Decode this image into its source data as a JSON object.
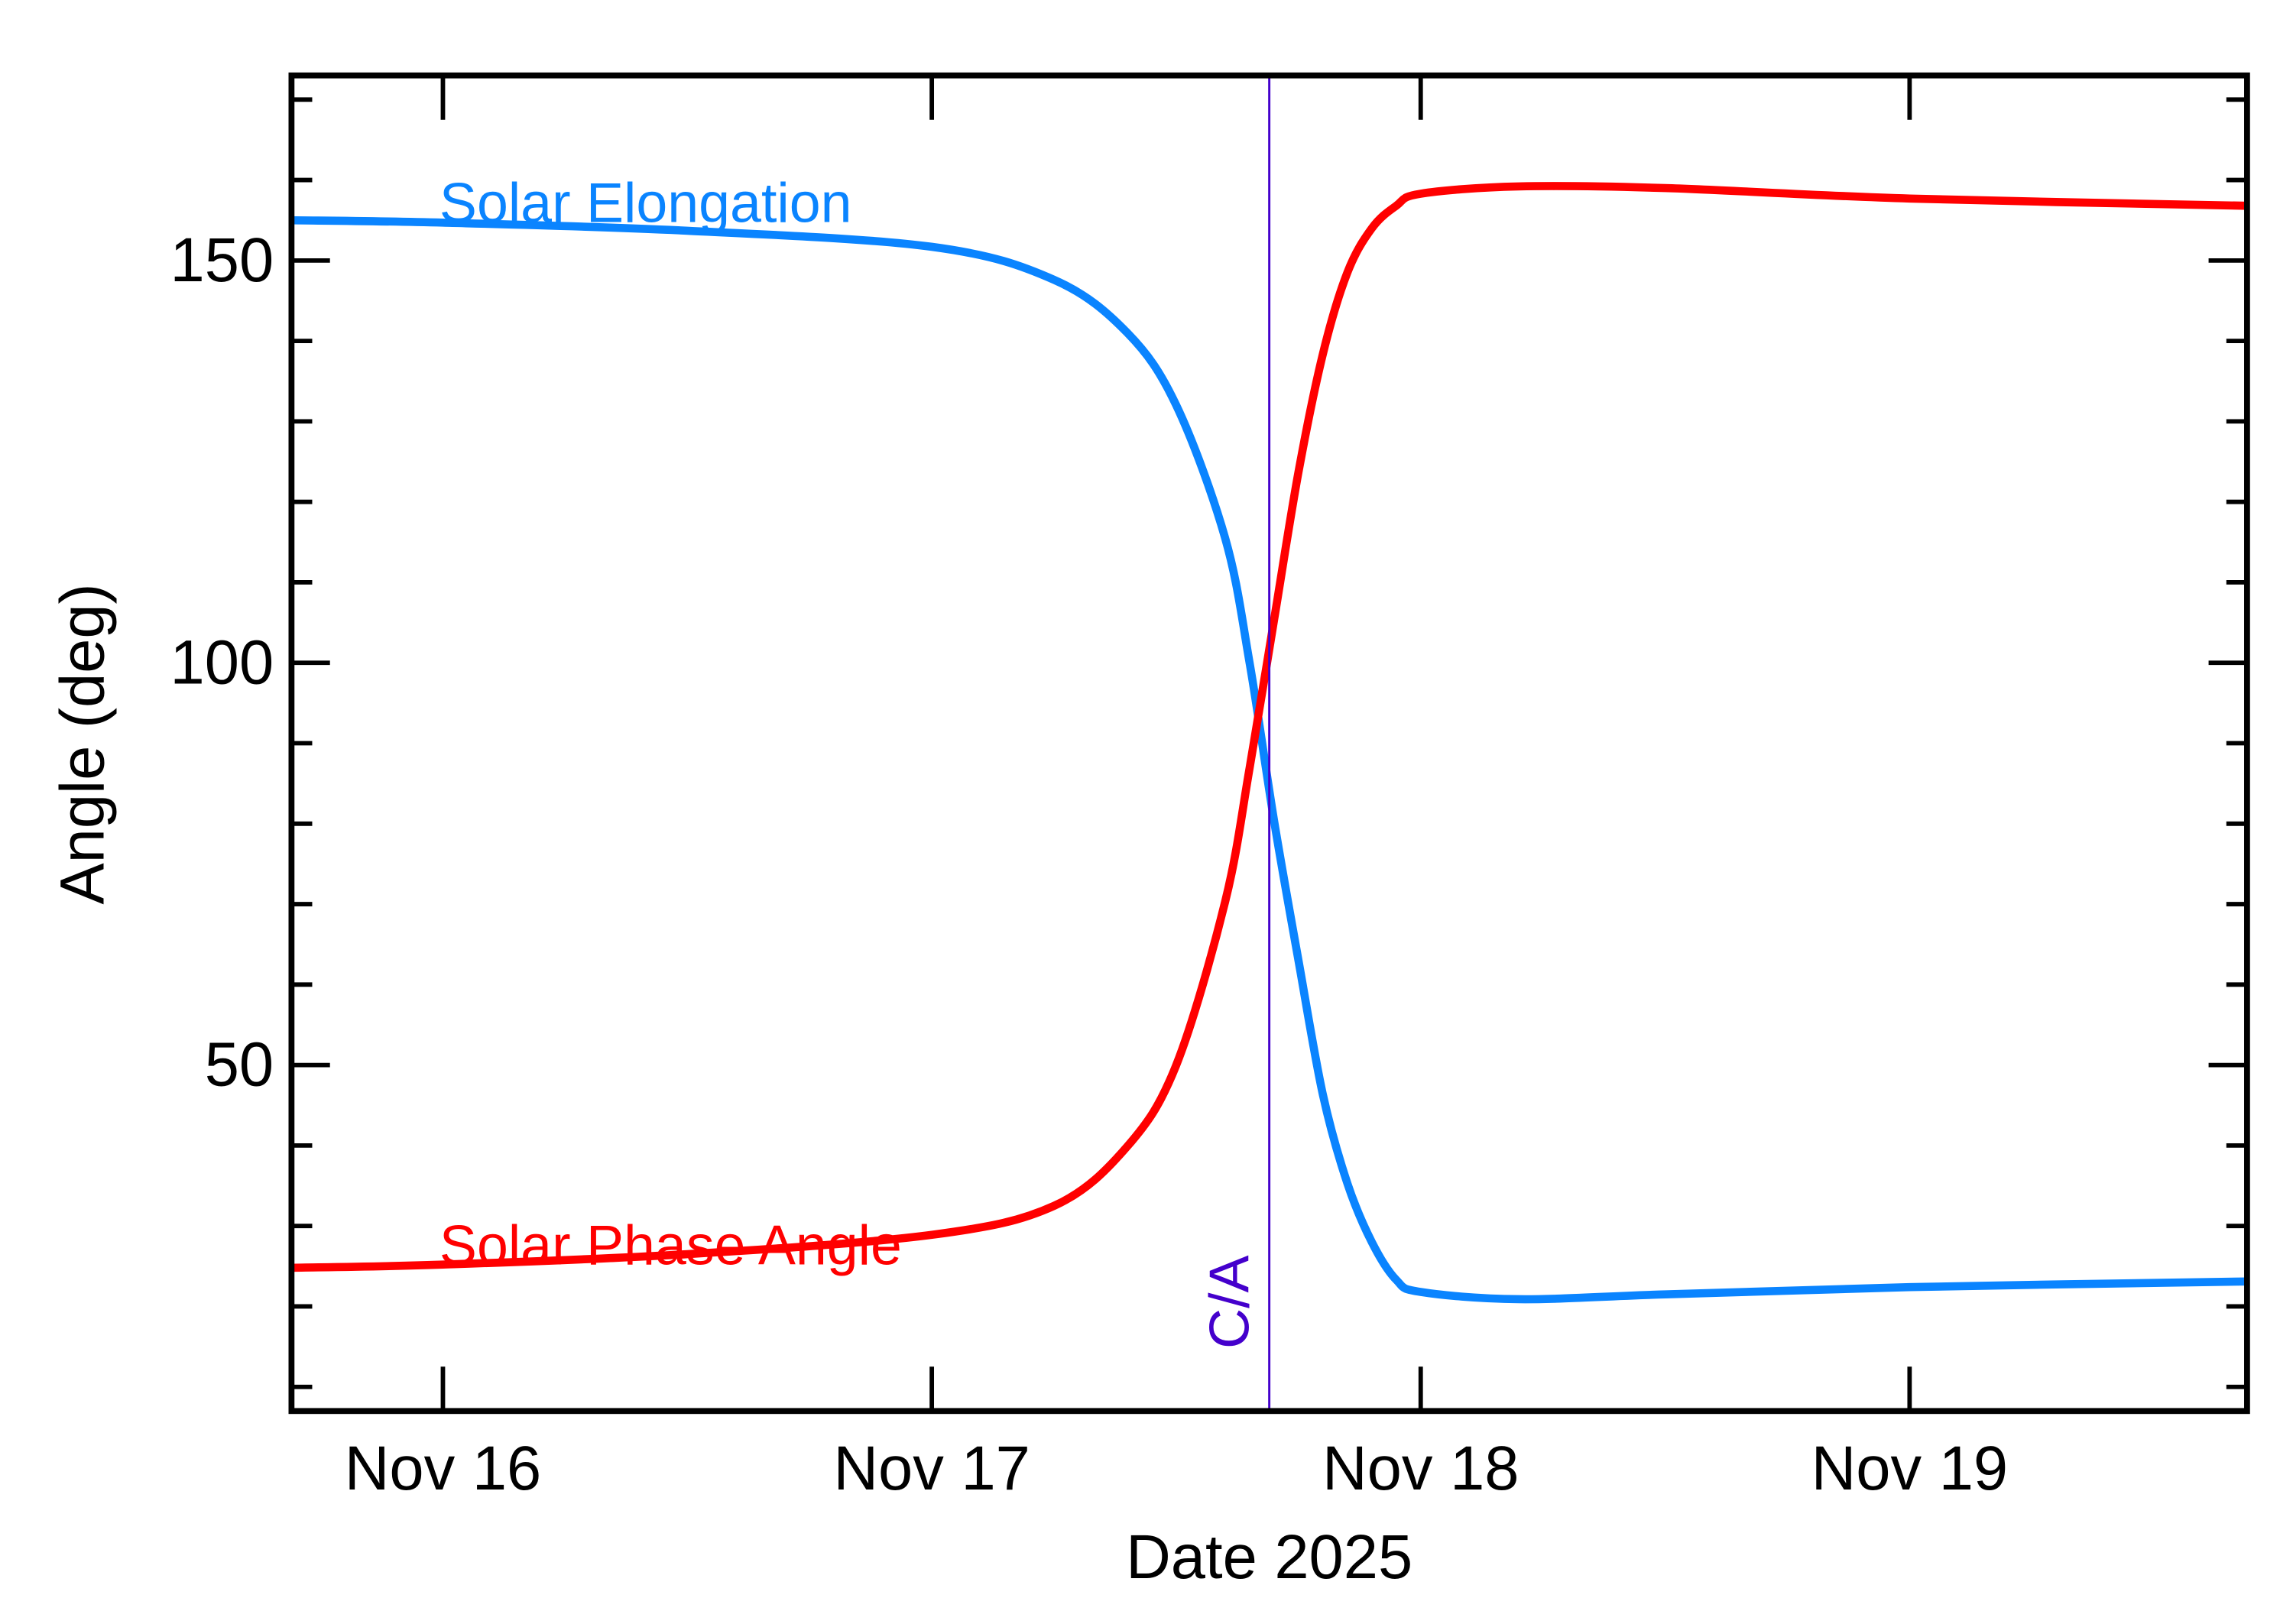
{
  "chart_data": {
    "type": "line",
    "title": "",
    "xlabel": "Date 2025",
    "ylabel": "Angle (deg)",
    "xlim": [
      "2025-11-15T16:34",
      "2025-11-19T16:34"
    ],
    "ylim": [
      7,
      173
    ],
    "grid": false,
    "x_ticks": [
      {
        "value": "2025-11-16T00:00",
        "label": "Nov 16"
      },
      {
        "value": "2025-11-17T00:00",
        "label": "Nov 17"
      },
      {
        "value": "2025-11-18T00:00",
        "label": "Nov 18"
      },
      {
        "value": "2025-11-19T00:00",
        "label": "Nov 19"
      }
    ],
    "y_ticks": [
      50,
      100,
      150
    ],
    "y_tick_labels": [
      "50",
      "100",
      "150"
    ],
    "y_minor_step": 10,
    "x": [
      "2025-11-15T16:34",
      "2025-11-16T00:00",
      "2025-11-16T12:00",
      "2025-11-17T00:00",
      "2025-11-17T06:00",
      "2025-11-17T09:36",
      "2025-11-17T12:00",
      "2025-11-17T14:24",
      "2025-11-17T15:36",
      "2025-11-17T16:48",
      "2025-11-17T18:00",
      "2025-11-17T19:12",
      "2025-11-17T20:24",
      "2025-11-17T21:36",
      "2025-11-17T22:48",
      "2025-11-18T00:00",
      "2025-11-18T04:48",
      "2025-11-18T12:00",
      "2025-11-19T00:00",
      "2025-11-19T16:34"
    ],
    "series": [
      {
        "name": "Solar Elongation",
        "color": "#0a84ff",
        "values": [
          155.0,
          154.7,
          153.7,
          151.7,
          147.6,
          141.0,
          132.0,
          115.5,
          100.0,
          80.4,
          63.0,
          46.3,
          35.3,
          28.0,
          23.3,
          21.8,
          20.9,
          21.5,
          22.4,
          23.1
        ]
      },
      {
        "name": "Solar Phase Angle",
        "color": "#ff0000",
        "values": [
          24.8,
          25.2,
          26.5,
          28.9,
          32.5,
          39.9,
          50.0,
          70.3,
          86.9,
          105.3,
          123.7,
          138.4,
          148.5,
          154.0,
          156.8,
          158.3,
          159.2,
          159.0,
          157.7,
          156.8
        ]
      }
    ],
    "annotations": [
      {
        "type": "vline",
        "x": "2025-11-17T16:34",
        "label": "C/A",
        "color": "#4400cc"
      }
    ]
  }
}
